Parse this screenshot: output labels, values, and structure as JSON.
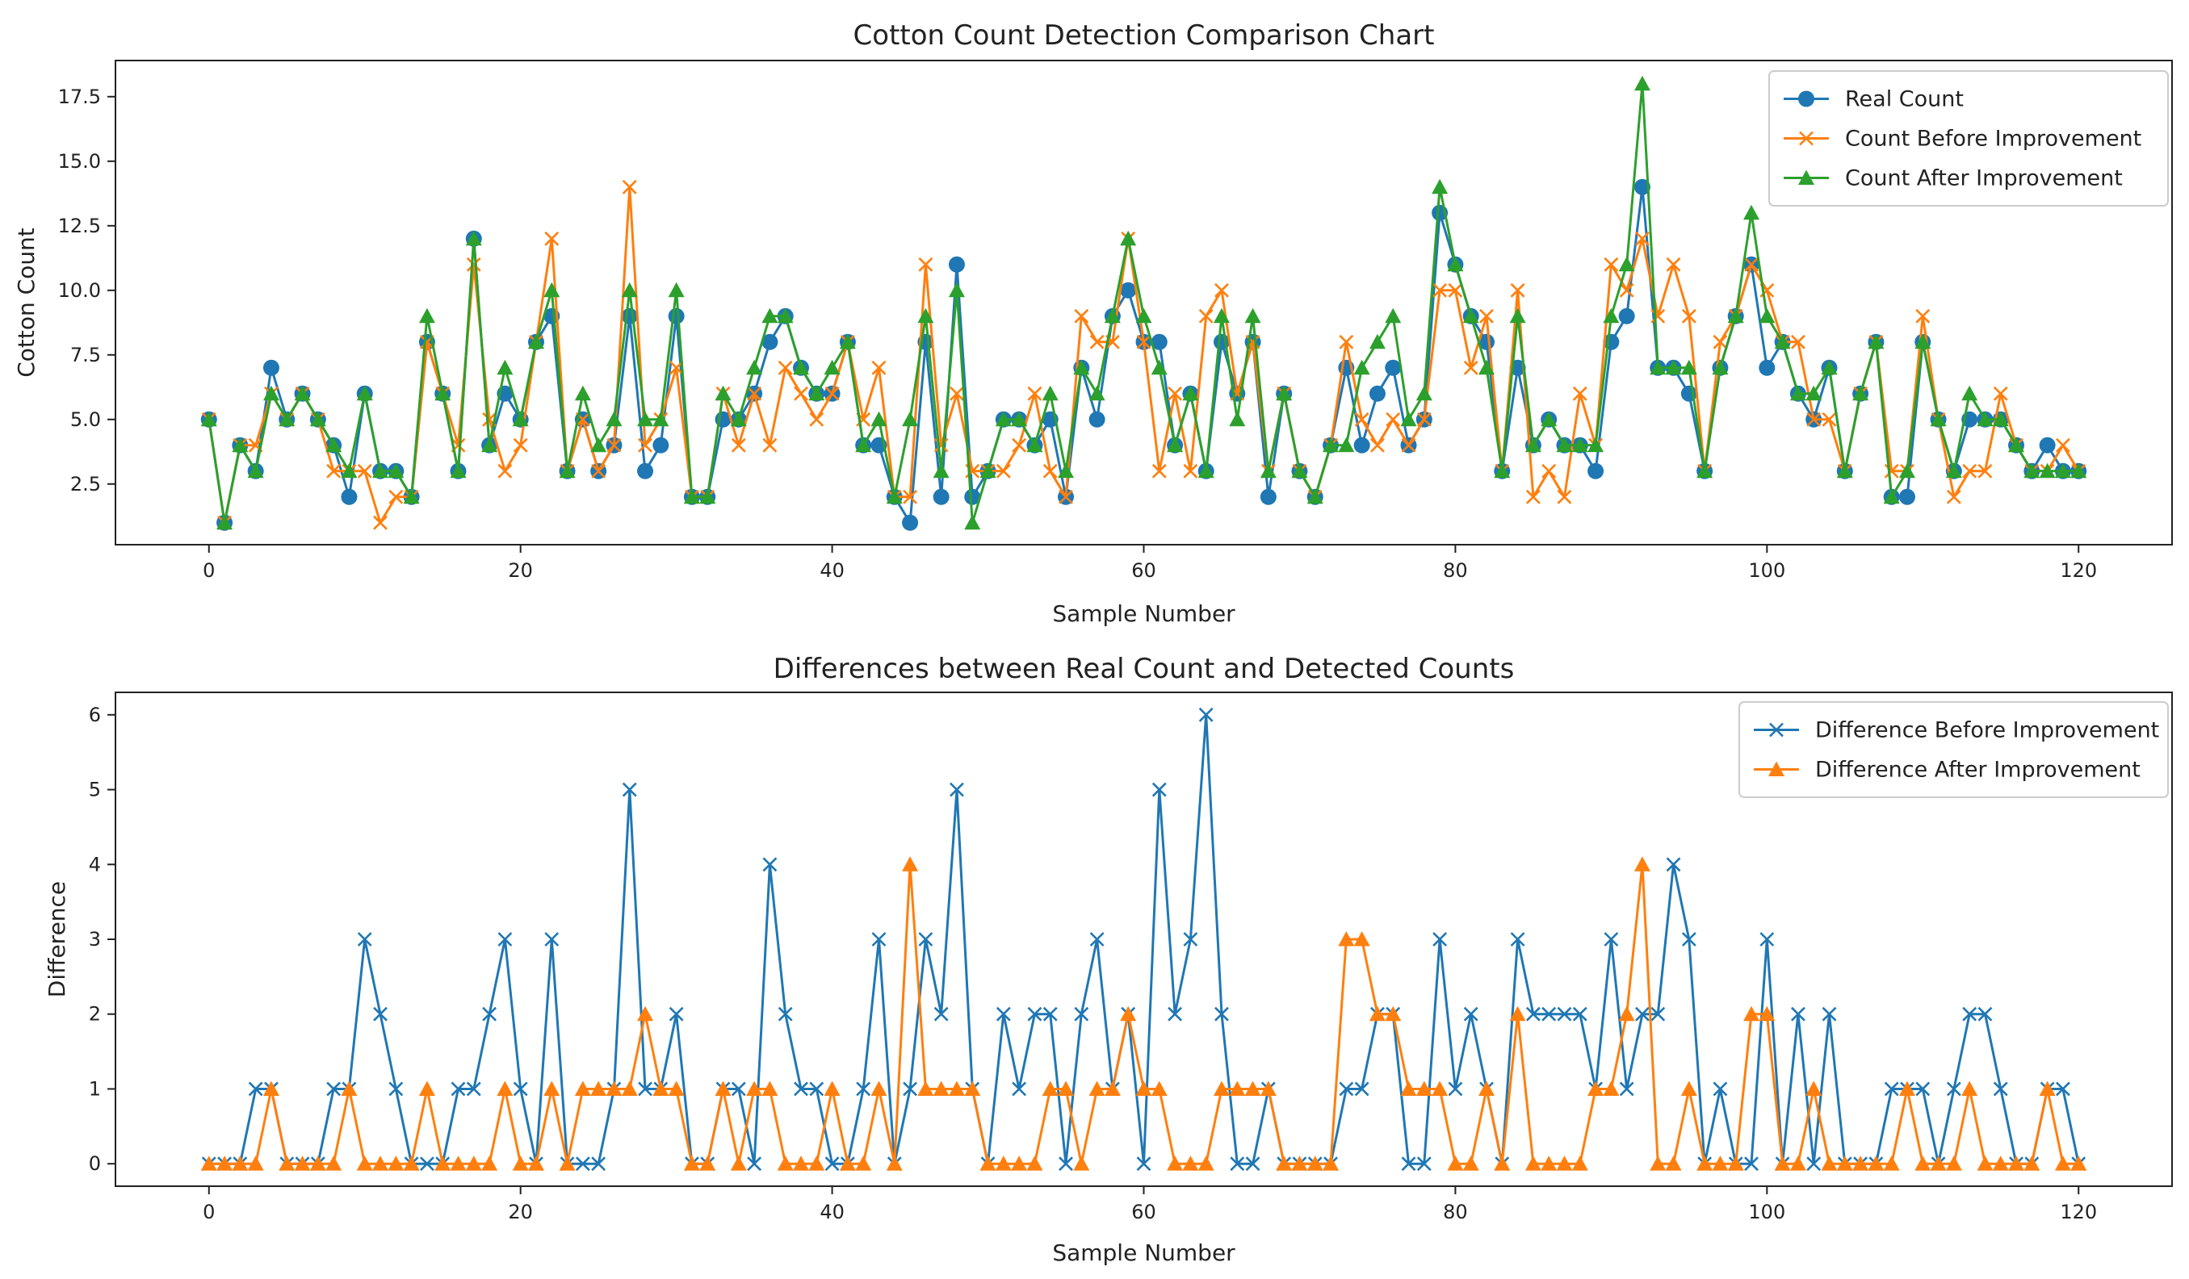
{
  "chart_data": [
    {
      "type": "line",
      "title": "Cotton Count Detection Comparison Chart",
      "xlabel": "Sample Number",
      "ylabel": "Cotton Count",
      "xlim": [
        -6,
        126
      ],
      "ylim": [
        0.15,
        18.9
      ],
      "xticks": [
        0,
        20,
        40,
        60,
        80,
        100,
        120
      ],
      "yticks": [
        2.5,
        5.0,
        7.5,
        10.0,
        12.5,
        15.0,
        17.5
      ],
      "legend_position": "top-right",
      "x": [
        0,
        1,
        2,
        3,
        4,
        5,
        6,
        7,
        8,
        9,
        10,
        11,
        12,
        13,
        14,
        15,
        16,
        17,
        18,
        19,
        20,
        21,
        22,
        23,
        24,
        25,
        26,
        27,
        28,
        29,
        30,
        31,
        32,
        33,
        34,
        35,
        36,
        37,
        38,
        39,
        40,
        41,
        42,
        43,
        44,
        45,
        46,
        47,
        48,
        49,
        50,
        51,
        52,
        53,
        54,
        55,
        56,
        57,
        58,
        59,
        60,
        61,
        62,
        63,
        64,
        65,
        66,
        67,
        68,
        69,
        70,
        71,
        72,
        73,
        74,
        75,
        76,
        77,
        78,
        79,
        80,
        81,
        82,
        83,
        84,
        85,
        86,
        87,
        88,
        89,
        90,
        91,
        92,
        93,
        94,
        95,
        96,
        97,
        98,
        99,
        100,
        101,
        102,
        103,
        104,
        105,
        106,
        107,
        108,
        109,
        110,
        111,
        112,
        113,
        114,
        115,
        116,
        117,
        118,
        119,
        120
      ],
      "series": [
        {
          "name": "Real Count",
          "color": "#1f77b4",
          "marker": "circle",
          "values": [
            5,
            1,
            4,
            3,
            7,
            5,
            6,
            5,
            4,
            2,
            6,
            3,
            3,
            2,
            8,
            6,
            3,
            12,
            4,
            6,
            5,
            8,
            9,
            3,
            5,
            3,
            4,
            9,
            3,
            4,
            9,
            2,
            2,
            5,
            5,
            6,
            8,
            9,
            7,
            6,
            6,
            8,
            4,
            4,
            2,
            1,
            8,
            2,
            11,
            2,
            3,
            5,
            5,
            4,
            5,
            2,
            7,
            5,
            9,
            10,
            8,
            8,
            4,
            6,
            3,
            8,
            6,
            8,
            2,
            6,
            3,
            2,
            4,
            7,
            4,
            6,
            7,
            4,
            5,
            13,
            11,
            9,
            8,
            3,
            7,
            4,
            5,
            4,
            4,
            3,
            8,
            9,
            14,
            7,
            7,
            6,
            3,
            7,
            9,
            11,
            7,
            8,
            6,
            5,
            7,
            3,
            6,
            8,
            2,
            2,
            8,
            5,
            3,
            5,
            5,
            5,
            4,
            3,
            4,
            3,
            3
          ]
        },
        {
          "name": "Count Before Improvement",
          "color": "#ff7f0e",
          "marker": "x",
          "values": [
            5,
            1,
            4,
            4,
            6,
            5,
            6,
            5,
            3,
            3,
            3,
            1,
            2,
            2,
            8,
            6,
            4,
            11,
            5,
            3,
            4,
            8,
            12,
            3,
            5,
            3,
            4,
            14,
            4,
            5,
            7,
            2,
            2,
            6,
            4,
            6,
            4,
            7,
            6,
            5,
            6,
            8,
            5,
            7,
            2,
            2,
            11,
            4,
            6,
            3,
            3,
            3,
            4,
            6,
            3,
            2,
            9,
            8,
            8,
            12,
            8,
            3,
            6,
            3,
            9,
            10,
            6,
            8,
            3,
            6,
            3,
            2,
            4,
            8,
            5,
            4,
            5,
            4,
            5,
            10,
            10,
            7,
            9,
            3,
            10,
            2,
            3,
            2,
            6,
            4,
            11,
            10,
            12,
            9,
            11,
            9,
            3,
            8,
            9,
            11,
            10,
            8,
            8,
            5,
            5,
            3,
            6,
            8,
            3,
            3,
            9,
            5,
            2,
            3,
            3,
            6,
            4,
            3,
            3,
            4,
            3
          ]
        },
        {
          "name": "Count After Improvement",
          "color": "#2ca02c",
          "marker": "triangle",
          "values": [
            5,
            1,
            4,
            3,
            6,
            5,
            6,
            5,
            4,
            3,
            6,
            3,
            3,
            2,
            9,
            6,
            3,
            12,
            4,
            7,
            5,
            8,
            10,
            3,
            6,
            4,
            5,
            10,
            5,
            5,
            10,
            2,
            2,
            6,
            5,
            7,
            9,
            9,
            7,
            6,
            7,
            8,
            4,
            5,
            2,
            5,
            9,
            3,
            10,
            1,
            3,
            5,
            5,
            4,
            6,
            3,
            7,
            6,
            9,
            12,
            9,
            7,
            4,
            6,
            3,
            9,
            5,
            9,
            3,
            6,
            3,
            2,
            4,
            4,
            7,
            8,
            9,
            5,
            6,
            14,
            11,
            9,
            7,
            3,
            9,
            4,
            5,
            4,
            4,
            4,
            9,
            11,
            18,
            7,
            7,
            7,
            3,
            7,
            9,
            13,
            9,
            8,
            6,
            6,
            7,
            3,
            6,
            8,
            2,
            3,
            8,
            5,
            3,
            6,
            5,
            5,
            4,
            3,
            3,
            3,
            3
          ]
        }
      ]
    },
    {
      "type": "line",
      "title": "Differences between Real Count and Detected Counts",
      "xlabel": "Sample Number",
      "ylabel": "Difference",
      "xlim": [
        -6,
        126
      ],
      "ylim": [
        -0.3,
        6.3
      ],
      "xticks": [
        0,
        20,
        40,
        60,
        80,
        100,
        120
      ],
      "yticks": [
        0,
        1,
        2,
        3,
        4,
        5,
        6
      ],
      "legend_position": "top-right",
      "x": [
        0,
        1,
        2,
        3,
        4,
        5,
        6,
        7,
        8,
        9,
        10,
        11,
        12,
        13,
        14,
        15,
        16,
        17,
        18,
        19,
        20,
        21,
        22,
        23,
        24,
        25,
        26,
        27,
        28,
        29,
        30,
        31,
        32,
        33,
        34,
        35,
        36,
        37,
        38,
        39,
        40,
        41,
        42,
        43,
        44,
        45,
        46,
        47,
        48,
        49,
        50,
        51,
        52,
        53,
        54,
        55,
        56,
        57,
        58,
        59,
        60,
        61,
        62,
        63,
        64,
        65,
        66,
        67,
        68,
        69,
        70,
        71,
        72,
        73,
        74,
        75,
        76,
        77,
        78,
        79,
        80,
        81,
        82,
        83,
        84,
        85,
        86,
        87,
        88,
        89,
        90,
        91,
        92,
        93,
        94,
        95,
        96,
        97,
        98,
        99,
        100,
        101,
        102,
        103,
        104,
        105,
        106,
        107,
        108,
        109,
        110,
        111,
        112,
        113,
        114,
        115,
        116,
        117,
        118,
        119,
        120
      ],
      "series": [
        {
          "name": "Difference Before Improvement",
          "color": "#1f77b4",
          "marker": "x",
          "values": [
            0,
            0,
            0,
            1,
            1,
            0,
            0,
            0,
            1,
            1,
            3,
            2,
            1,
            0,
            0,
            0,
            1,
            1,
            2,
            3,
            1,
            0,
            3,
            0,
            0,
            0,
            1,
            5,
            1,
            1,
            2,
            0,
            0,
            1,
            1,
            0,
            4,
            2,
            1,
            1,
            0,
            0,
            1,
            3,
            0,
            1,
            3,
            2,
            5,
            1,
            0,
            2,
            1,
            2,
            2,
            0,
            2,
            3,
            1,
            2,
            0,
            5,
            2,
            3,
            6,
            2,
            0,
            0,
            1,
            0,
            0,
            0,
            0,
            1,
            1,
            2,
            2,
            0,
            0,
            3,
            1,
            2,
            1,
            0,
            3,
            2,
            2,
            2,
            2,
            1,
            3,
            1,
            2,
            2,
            4,
            3,
            0,
            1,
            0,
            0,
            3,
            0,
            2,
            0,
            2,
            0,
            0,
            0,
            1,
            1,
            1,
            0,
            1,
            2,
            2,
            1,
            0,
            0,
            1,
            1,
            0
          ]
        },
        {
          "name": "Difference After Improvement",
          "color": "#ff7f0e",
          "marker": "triangle",
          "values": [
            0,
            0,
            0,
            0,
            1,
            0,
            0,
            0,
            0,
            1,
            0,
            0,
            0,
            0,
            1,
            0,
            0,
            0,
            0,
            1,
            0,
            0,
            1,
            0,
            1,
            1,
            1,
            1,
            2,
            1,
            1,
            0,
            0,
            1,
            0,
            1,
            1,
            0,
            0,
            0,
            1,
            0,
            0,
            1,
            0,
            4,
            1,
            1,
            1,
            1,
            0,
            0,
            0,
            0,
            1,
            1,
            0,
            1,
            1,
            2,
            1,
            1,
            0,
            0,
            0,
            1,
            1,
            1,
            1,
            0,
            0,
            0,
            0,
            3,
            3,
            2,
            2,
            1,
            1,
            1,
            0,
            0,
            1,
            0,
            2,
            0,
            0,
            0,
            0,
            1,
            1,
            2,
            4,
            0,
            0,
            1,
            0,
            0,
            0,
            2,
            2,
            0,
            0,
            1,
            0,
            0,
            0,
            0,
            0,
            1,
            0,
            0,
            0,
            1,
            0,
            0,
            0,
            0,
            1,
            0,
            0
          ]
        }
      ]
    }
  ]
}
